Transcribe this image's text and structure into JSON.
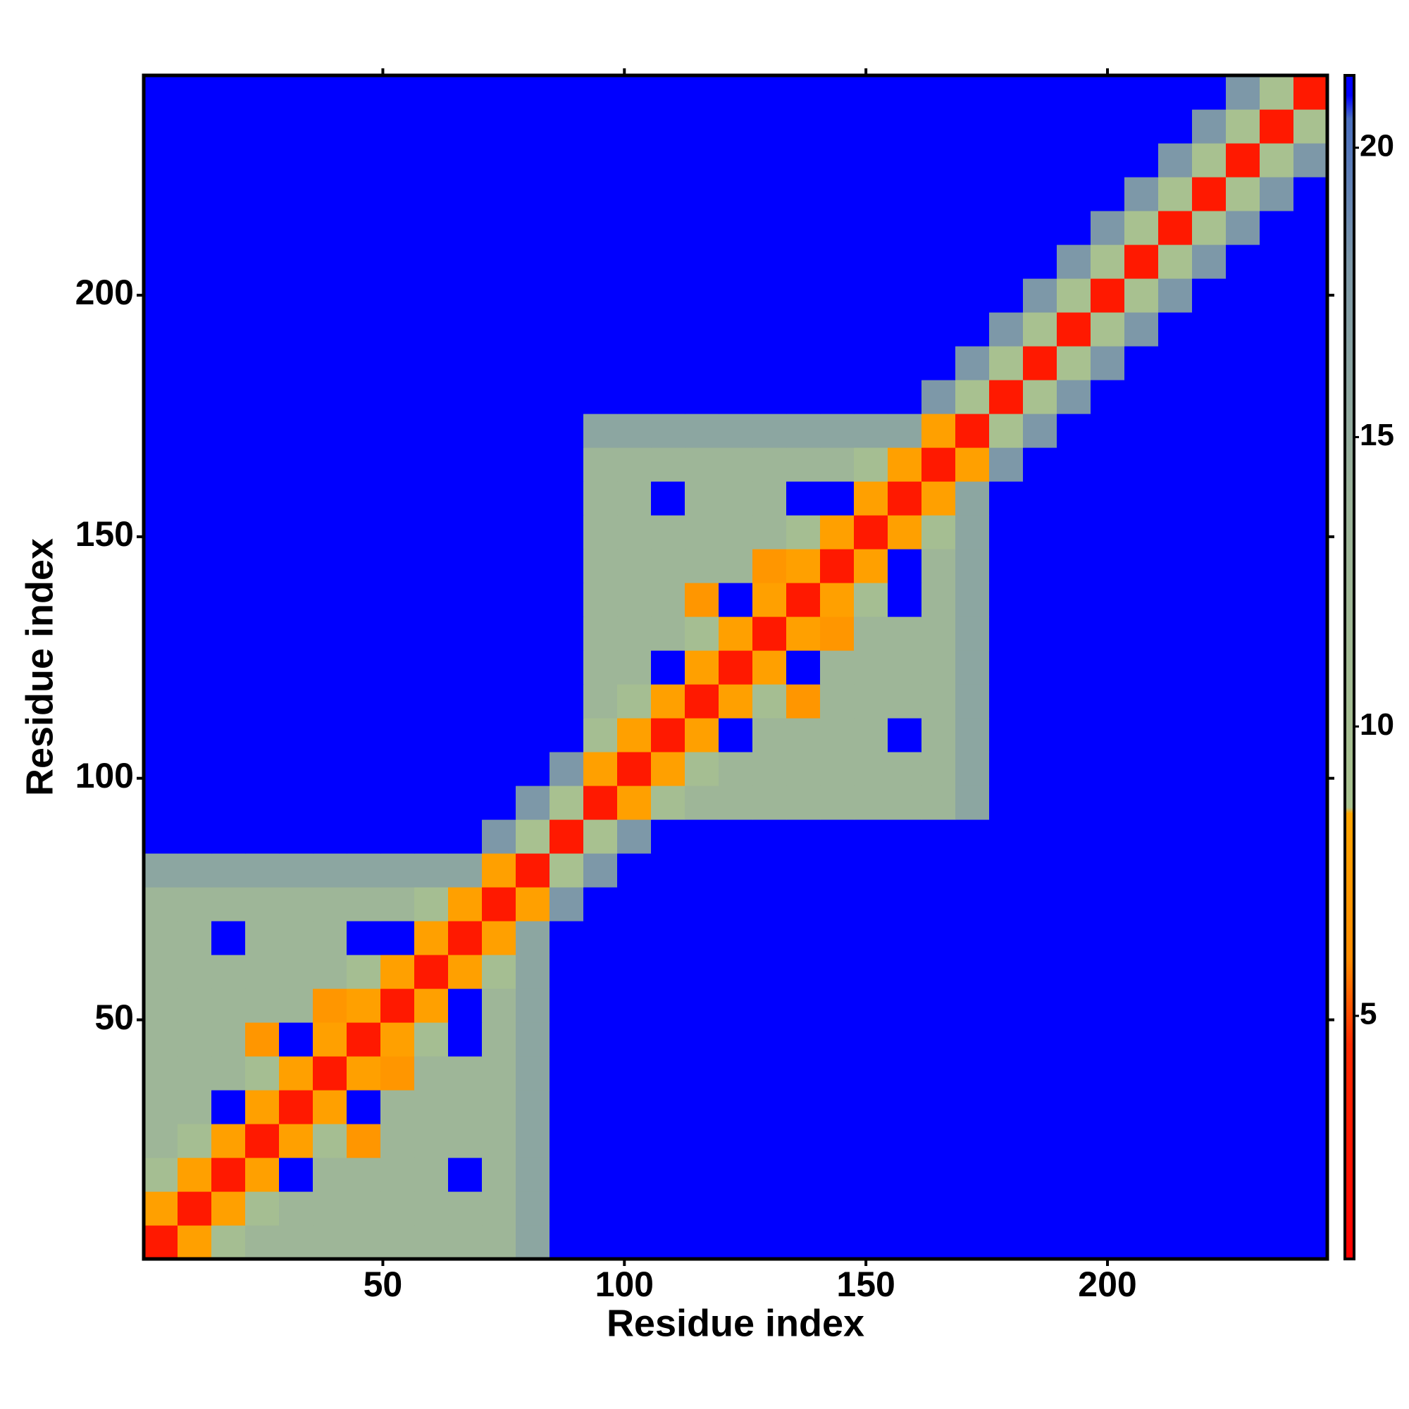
{
  "chart_data": {
    "type": "heatmap",
    "xlabel": "Residue index",
    "ylabel": "Residue index",
    "x": [
      4,
      11,
      18,
      25,
      32,
      39,
      46,
      53,
      60,
      67,
      74,
      81,
      88,
      95,
      102,
      109,
      116,
      123,
      130,
      137,
      144,
      151,
      158,
      165,
      172,
      179,
      186,
      193,
      200,
      207,
      214,
      221,
      228,
      235,
      242
    ],
    "y": [
      4,
      11,
      18,
      25,
      32,
      39,
      46,
      53,
      60,
      67,
      74,
      81,
      88,
      95,
      102,
      109,
      116,
      123,
      130,
      137,
      144,
      151,
      158,
      165,
      172,
      179,
      186,
      193,
      200,
      207,
      214,
      221,
      228,
      235,
      242
    ],
    "z": [
      [
        3,
        8,
        10,
        13,
        13,
        13,
        13,
        13,
        13,
        13,
        13,
        16,
        21,
        21,
        21,
        21,
        21,
        21,
        21,
        21,
        21,
        21,
        21,
        21,
        21,
        21,
        21,
        21,
        21,
        21,
        21,
        21,
        21,
        21,
        21
      ],
      [
        8,
        3,
        8,
        10,
        13,
        13,
        13,
        13,
        13,
        13,
        13,
        16,
        21,
        21,
        21,
        21,
        21,
        21,
        21,
        21,
        21,
        21,
        21,
        21,
        21,
        21,
        21,
        21,
        21,
        21,
        21,
        21,
        21,
        21,
        21
      ],
      [
        10,
        8,
        3,
        8,
        21,
        13,
        13,
        13,
        13,
        21,
        13,
        16,
        21,
        21,
        21,
        21,
        21,
        21,
        21,
        21,
        21,
        21,
        21,
        21,
        21,
        21,
        21,
        21,
        21,
        21,
        21,
        21,
        21,
        21,
        21
      ],
      [
        13,
        10,
        8,
        3,
        8,
        10,
        7,
        13,
        13,
        13,
        13,
        16,
        21,
        21,
        21,
        21,
        21,
        21,
        21,
        21,
        21,
        21,
        21,
        21,
        21,
        21,
        21,
        21,
        21,
        21,
        21,
        21,
        21,
        21,
        21
      ],
      [
        13,
        13,
        21,
        8,
        3,
        8,
        21,
        13,
        13,
        13,
        13,
        16,
        21,
        21,
        21,
        21,
        21,
        21,
        21,
        21,
        21,
        21,
        21,
        21,
        21,
        21,
        21,
        21,
        21,
        21,
        21,
        21,
        21,
        21,
        21
      ],
      [
        13,
        13,
        13,
        10,
        8,
        3,
        8,
        7,
        13,
        13,
        13,
        16,
        21,
        21,
        21,
        21,
        21,
        21,
        21,
        21,
        21,
        21,
        21,
        21,
        21,
        21,
        21,
        21,
        21,
        21,
        21,
        21,
        21,
        21,
        21
      ],
      [
        13,
        13,
        13,
        7,
        21,
        8,
        3,
        8,
        10,
        21,
        13,
        16,
        21,
        21,
        21,
        21,
        21,
        21,
        21,
        21,
        21,
        21,
        21,
        21,
        21,
        21,
        21,
        21,
        21,
        21,
        21,
        21,
        21,
        21,
        21
      ],
      [
        13,
        13,
        13,
        13,
        13,
        7,
        8,
        3,
        8,
        21,
        13,
        16,
        21,
        21,
        21,
        21,
        21,
        21,
        21,
        21,
        21,
        21,
        21,
        21,
        21,
        21,
        21,
        21,
        21,
        21,
        21,
        21,
        21,
        21,
        21
      ],
      [
        13,
        13,
        13,
        13,
        13,
        13,
        10,
        8,
        3,
        8,
        10,
        16,
        21,
        21,
        21,
        21,
        21,
        21,
        21,
        21,
        21,
        21,
        21,
        21,
        21,
        21,
        21,
        21,
        21,
        21,
        21,
        21,
        21,
        21,
        21
      ],
      [
        13,
        13,
        21,
        13,
        13,
        13,
        21,
        21,
        8,
        3,
        8,
        16,
        21,
        21,
        21,
        21,
        21,
        21,
        21,
        21,
        21,
        21,
        21,
        21,
        21,
        21,
        21,
        21,
        21,
        21,
        21,
        21,
        21,
        21,
        21
      ],
      [
        13,
        13,
        13,
        13,
        13,
        13,
        13,
        13,
        10,
        8,
        3,
        8,
        18,
        21,
        21,
        21,
        21,
        21,
        21,
        21,
        21,
        21,
        21,
        21,
        21,
        21,
        21,
        21,
        21,
        21,
        21,
        21,
        21,
        21,
        21
      ],
      [
        16,
        16,
        16,
        16,
        16,
        16,
        16,
        16,
        16,
        16,
        8,
        3,
        9,
        18,
        21,
        21,
        21,
        21,
        21,
        21,
        21,
        21,
        21,
        21,
        21,
        21,
        21,
        21,
        21,
        21,
        21,
        21,
        21,
        21,
        21
      ],
      [
        21,
        21,
        21,
        21,
        21,
        21,
        21,
        21,
        21,
        21,
        18,
        9,
        3,
        9,
        18,
        21,
        21,
        21,
        21,
        21,
        21,
        21,
        21,
        21,
        21,
        21,
        21,
        21,
        21,
        21,
        21,
        21,
        21,
        21,
        21
      ],
      [
        21,
        21,
        21,
        21,
        21,
        21,
        21,
        21,
        21,
        21,
        21,
        18,
        9,
        3,
        8,
        10,
        13,
        13,
        13,
        13,
        13,
        13,
        13,
        13,
        16,
        21,
        21,
        21,
        21,
        21,
        21,
        21,
        21,
        21,
        21
      ],
      [
        21,
        21,
        21,
        21,
        21,
        21,
        21,
        21,
        21,
        21,
        21,
        21,
        18,
        8,
        3,
        8,
        10,
        13,
        13,
        13,
        13,
        13,
        13,
        13,
        16,
        21,
        21,
        21,
        21,
        21,
        21,
        21,
        21,
        21,
        21
      ],
      [
        21,
        21,
        21,
        21,
        21,
        21,
        21,
        21,
        21,
        21,
        21,
        21,
        21,
        10,
        8,
        3,
        8,
        21,
        13,
        13,
        13,
        13,
        21,
        13,
        16,
        21,
        21,
        21,
        21,
        21,
        21,
        21,
        21,
        21,
        21
      ],
      [
        21,
        21,
        21,
        21,
        21,
        21,
        21,
        21,
        21,
        21,
        21,
        21,
        21,
        13,
        10,
        8,
        3,
        8,
        10,
        7,
        13,
        13,
        13,
        13,
        16,
        21,
        21,
        21,
        21,
        21,
        21,
        21,
        21,
        21,
        21
      ],
      [
        21,
        21,
        21,
        21,
        21,
        21,
        21,
        21,
        21,
        21,
        21,
        21,
        21,
        13,
        13,
        21,
        8,
        3,
        8,
        21,
        13,
        13,
        13,
        13,
        16,
        21,
        21,
        21,
        21,
        21,
        21,
        21,
        21,
        21,
        21
      ],
      [
        21,
        21,
        21,
        21,
        21,
        21,
        21,
        21,
        21,
        21,
        21,
        21,
        21,
        13,
        13,
        13,
        10,
        8,
        3,
        8,
        7,
        13,
        13,
        13,
        16,
        21,
        21,
        21,
        21,
        21,
        21,
        21,
        21,
        21,
        21
      ],
      [
        21,
        21,
        21,
        21,
        21,
        21,
        21,
        21,
        21,
        21,
        21,
        21,
        21,
        13,
        13,
        13,
        7,
        21,
        8,
        3,
        8,
        10,
        21,
        13,
        16,
        21,
        21,
        21,
        21,
        21,
        21,
        21,
        21,
        21,
        21
      ],
      [
        21,
        21,
        21,
        21,
        21,
        21,
        21,
        21,
        21,
        21,
        21,
        21,
        21,
        13,
        13,
        13,
        13,
        13,
        7,
        8,
        3,
        8,
        21,
        13,
        16,
        21,
        21,
        21,
        21,
        21,
        21,
        21,
        21,
        21,
        21
      ],
      [
        21,
        21,
        21,
        21,
        21,
        21,
        21,
        21,
        21,
        21,
        21,
        21,
        21,
        13,
        13,
        13,
        13,
        13,
        13,
        10,
        8,
        3,
        8,
        10,
        16,
        21,
        21,
        21,
        21,
        21,
        21,
        21,
        21,
        21,
        21
      ],
      [
        21,
        21,
        21,
        21,
        21,
        21,
        21,
        21,
        21,
        21,
        21,
        21,
        21,
        13,
        13,
        21,
        13,
        13,
        13,
        21,
        21,
        8,
        3,
        8,
        16,
        21,
        21,
        21,
        21,
        21,
        21,
        21,
        21,
        21,
        21
      ],
      [
        21,
        21,
        21,
        21,
        21,
        21,
        21,
        21,
        21,
        21,
        21,
        21,
        21,
        13,
        13,
        13,
        13,
        13,
        13,
        13,
        13,
        10,
        8,
        3,
        8,
        18,
        21,
        21,
        21,
        21,
        21,
        21,
        21,
        21,
        21
      ],
      [
        21,
        21,
        21,
        21,
        21,
        21,
        21,
        21,
        21,
        21,
        21,
        21,
        21,
        16,
        16,
        16,
        16,
        16,
        16,
        16,
        16,
        16,
        16,
        8,
        3,
        9,
        18,
        21,
        21,
        21,
        21,
        21,
        21,
        21,
        21
      ],
      [
        21,
        21,
        21,
        21,
        21,
        21,
        21,
        21,
        21,
        21,
        21,
        21,
        21,
        21,
        21,
        21,
        21,
        21,
        21,
        21,
        21,
        21,
        21,
        18,
        9,
        3,
        9,
        18,
        21,
        21,
        21,
        21,
        21,
        21,
        21
      ],
      [
        21,
        21,
        21,
        21,
        21,
        21,
        21,
        21,
        21,
        21,
        21,
        21,
        21,
        21,
        21,
        21,
        21,
        21,
        21,
        21,
        21,
        21,
        21,
        21,
        18,
        9,
        3,
        9,
        18,
        21,
        21,
        21,
        21,
        21,
        21
      ],
      [
        21,
        21,
        21,
        21,
        21,
        21,
        21,
        21,
        21,
        21,
        21,
        21,
        21,
        21,
        21,
        21,
        21,
        21,
        21,
        21,
        21,
        21,
        21,
        21,
        21,
        18,
        9,
        3,
        9,
        18,
        21,
        21,
        21,
        21,
        21
      ],
      [
        21,
        21,
        21,
        21,
        21,
        21,
        21,
        21,
        21,
        21,
        21,
        21,
        21,
        21,
        21,
        21,
        21,
        21,
        21,
        21,
        21,
        21,
        21,
        21,
        21,
        21,
        18,
        9,
        3,
        9,
        18,
        21,
        21,
        21,
        21
      ],
      [
        21,
        21,
        21,
        21,
        21,
        21,
        21,
        21,
        21,
        21,
        21,
        21,
        21,
        21,
        21,
        21,
        21,
        21,
        21,
        21,
        21,
        21,
        21,
        21,
        21,
        21,
        21,
        18,
        9,
        3,
        9,
        18,
        21,
        21,
        21
      ],
      [
        21,
        21,
        21,
        21,
        21,
        21,
        21,
        21,
        21,
        21,
        21,
        21,
        21,
        21,
        21,
        21,
        21,
        21,
        21,
        21,
        21,
        21,
        21,
        21,
        21,
        21,
        21,
        21,
        18,
        9,
        3,
        9,
        18,
        21,
        21
      ],
      [
        21,
        21,
        21,
        21,
        21,
        21,
        21,
        21,
        21,
        21,
        21,
        21,
        21,
        21,
        21,
        21,
        21,
        21,
        21,
        21,
        21,
        21,
        21,
        21,
        21,
        21,
        21,
        21,
        21,
        18,
        9,
        3,
        9,
        18,
        21
      ],
      [
        21,
        21,
        21,
        21,
        21,
        21,
        21,
        21,
        21,
        21,
        21,
        21,
        21,
        21,
        21,
        21,
        21,
        21,
        21,
        21,
        21,
        21,
        21,
        21,
        21,
        21,
        21,
        21,
        21,
        21,
        18,
        9,
        3,
        9,
        18
      ],
      [
        21,
        21,
        21,
        21,
        21,
        21,
        21,
        21,
        21,
        21,
        21,
        21,
        21,
        21,
        21,
        21,
        21,
        21,
        21,
        21,
        21,
        21,
        21,
        21,
        21,
        21,
        21,
        21,
        21,
        21,
        21,
        18,
        9,
        3,
        9
      ],
      [
        21,
        21,
        21,
        21,
        21,
        21,
        21,
        21,
        21,
        21,
        21,
        21,
        21,
        21,
        21,
        21,
        21,
        21,
        21,
        21,
        21,
        21,
        21,
        21,
        21,
        21,
        21,
        21,
        21,
        21,
        21,
        21,
        18,
        9,
        3
      ]
    ],
    "xlim": [
      0.5,
      245.5
    ],
    "ylim": [
      0.5,
      245.5
    ],
    "xticks": [
      50,
      100,
      150,
      200
    ],
    "yticks": [
      50,
      100,
      150,
      200
    ],
    "zlim": [
      0.8,
      21.25
    ],
    "zticks": [
      5,
      10,
      15,
      20
    ],
    "colorscale": [
      {
        "value": 0.8,
        "color": "#ff0000"
      },
      {
        "value": 4.5,
        "color": "#ff2a00"
      },
      {
        "value": 6,
        "color": "#ff8c00"
      },
      {
        "value": 8.5,
        "color": "#ffa500"
      },
      {
        "value": 8.6,
        "color": "#a9c28f"
      },
      {
        "value": 14,
        "color": "#9bb39a"
      },
      {
        "value": 18,
        "color": "#7d98a8"
      },
      {
        "value": 20.5,
        "color": "#4a6fc0"
      },
      {
        "value": 20.9,
        "color": "#0000ff"
      },
      {
        "value": 21.25,
        "color": "#0000ff"
      }
    ]
  }
}
